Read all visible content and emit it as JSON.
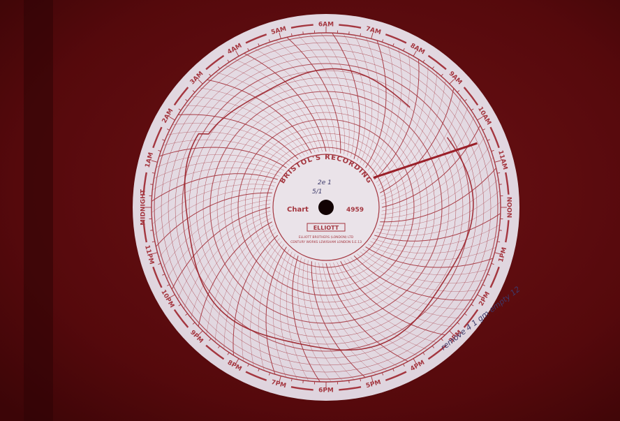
{
  "photo": {
    "subject": "circular chart recorder paper",
    "background_color": "#5a0a0d",
    "paper_color": "#e7dfe6",
    "ink_color": "#a4363f",
    "trace_color": "#9a1f28"
  },
  "chart": {
    "maker": "BRISTOL'S RECORDING",
    "chart_label": "Chart",
    "chart_number": "4959",
    "brand_badge": "ELLIOTT",
    "small_print_1": "ELLIOTT BROTHERS (LONDON) LTD",
    "small_print_2": "CENTURY WORKS LEWISHAM LONDON S.E.13",
    "handwritten_center_line_1": "2e 1",
    "handwritten_center_line_2": "5/1"
  },
  "time_labels": [
    {
      "text": "NOON",
      "angle": 90
    },
    {
      "text": "1PM",
      "angle": 105
    },
    {
      "text": "2PM",
      "angle": 120
    },
    {
      "text": "3PM",
      "angle": 135
    },
    {
      "text": "4PM",
      "angle": 150
    },
    {
      "text": "5PM",
      "angle": 165
    },
    {
      "text": "6PM",
      "angle": 180
    },
    {
      "text": "7PM",
      "angle": 195
    },
    {
      "text": "8PM",
      "angle": 210
    },
    {
      "text": "9PM",
      "angle": 225
    },
    {
      "text": "10PM",
      "angle": 240
    },
    {
      "text": "11PM",
      "angle": 255
    },
    {
      "text": "MIDNIGHT",
      "angle": 270
    },
    {
      "text": "1AM",
      "angle": 285
    },
    {
      "text": "2AM",
      "angle": 300
    },
    {
      "text": "3AM",
      "angle": 315
    },
    {
      "text": "4AM",
      "angle": 330
    },
    {
      "text": "5AM",
      "angle": 345
    },
    {
      "text": "6AM",
      "angle": 0
    },
    {
      "text": "7AM",
      "angle": 15
    },
    {
      "text": "8AM",
      "angle": 30
    },
    {
      "text": "9AM",
      "angle": 45
    },
    {
      "text": "10AM",
      "angle": 60
    },
    {
      "text": "11AM",
      "angle": 75
    }
  ],
  "handwritten_edge_note": "remove 4 1 gm empty 12"
}
